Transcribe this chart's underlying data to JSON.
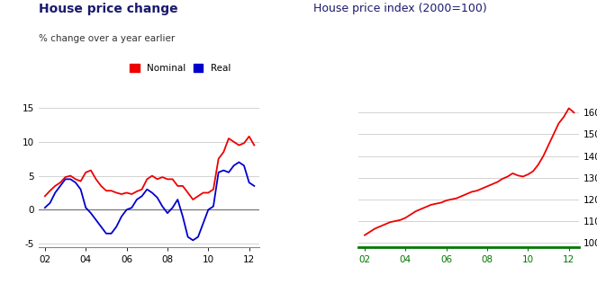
{
  "title1": "House price change",
  "subtitle1": "% change over a year earlier",
  "title2": "House price index (2000=100)",
  "title1_color": "#1a1a6e",
  "title2_color": "#1a1a6e",
  "subtitle1_color": "#333333",
  "nominal_color": "#ee0000",
  "real_color": "#0000cc",
  "background_color": "#ffffff",
  "grid_color": "#cccccc",
  "zero_line_color": "#777777",
  "green_color": "#007700",
  "left_ylim": [
    -5.5,
    17.5
  ],
  "left_yticks": [
    -5,
    0,
    5,
    10,
    15
  ],
  "left_xticks": [
    2002,
    2004,
    2006,
    2008,
    2010,
    2012
  ],
  "left_xticklabels": [
    "02",
    "04",
    "06",
    "08",
    "10",
    "12"
  ],
  "right_ylim": [
    98,
    170
  ],
  "right_yticks": [
    100,
    110,
    120,
    130,
    140,
    150,
    160
  ],
  "right_xticks": [
    2002,
    2004,
    2006,
    2008,
    2010,
    2012
  ],
  "right_xticklabels": [
    "02",
    "04",
    "06",
    "08",
    "10",
    "12"
  ],
  "nominal_x": [
    2002.0,
    2002.25,
    2002.5,
    2002.75,
    2003.0,
    2003.25,
    2003.5,
    2003.75,
    2004.0,
    2004.25,
    2004.5,
    2004.75,
    2005.0,
    2005.25,
    2005.5,
    2005.75,
    2006.0,
    2006.25,
    2006.5,
    2006.75,
    2007.0,
    2007.25,
    2007.5,
    2007.75,
    2008.0,
    2008.25,
    2008.5,
    2008.75,
    2009.0,
    2009.25,
    2009.5,
    2009.75,
    2010.0,
    2010.25,
    2010.5,
    2010.75,
    2011.0,
    2011.25,
    2011.5,
    2011.75,
    2012.0,
    2012.25
  ],
  "nominal_y": [
    2.0,
    2.8,
    3.5,
    4.0,
    4.8,
    5.0,
    4.5,
    4.2,
    5.5,
    5.8,
    4.5,
    3.5,
    2.8,
    2.8,
    2.5,
    2.3,
    2.5,
    2.3,
    2.7,
    3.0,
    4.5,
    5.0,
    4.5,
    4.8,
    4.5,
    4.5,
    3.5,
    3.5,
    2.5,
    1.5,
    2.0,
    2.5,
    2.5,
    3.0,
    7.5,
    8.5,
    10.5,
    10.0,
    9.5,
    9.8,
    10.8,
    9.5
  ],
  "real_x": [
    2002.0,
    2002.25,
    2002.5,
    2002.75,
    2003.0,
    2003.25,
    2003.5,
    2003.75,
    2004.0,
    2004.25,
    2004.5,
    2004.75,
    2005.0,
    2005.25,
    2005.5,
    2005.75,
    2006.0,
    2006.25,
    2006.5,
    2006.75,
    2007.0,
    2007.25,
    2007.5,
    2007.75,
    2008.0,
    2008.25,
    2008.5,
    2008.75,
    2009.0,
    2009.25,
    2009.5,
    2009.75,
    2010.0,
    2010.25,
    2010.5,
    2010.75,
    2011.0,
    2011.25,
    2011.5,
    2011.75,
    2012.0,
    2012.25
  ],
  "real_y": [
    0.3,
    1.0,
    2.5,
    3.5,
    4.5,
    4.5,
    4.0,
    3.0,
    0.3,
    -0.5,
    -1.5,
    -2.5,
    -3.5,
    -3.5,
    -2.5,
    -1.0,
    0.0,
    0.3,
    1.5,
    2.0,
    3.0,
    2.5,
    1.8,
    0.5,
    -0.5,
    0.3,
    1.5,
    -1.0,
    -4.0,
    -4.5,
    -4.0,
    -2.0,
    0.0,
    0.5,
    5.5,
    5.8,
    5.5,
    6.5,
    7.0,
    6.5,
    4.0,
    3.5
  ],
  "index_x": [
    2002.0,
    2002.25,
    2002.5,
    2002.75,
    2003.0,
    2003.25,
    2003.5,
    2003.75,
    2004.0,
    2004.25,
    2004.5,
    2004.75,
    2005.0,
    2005.25,
    2005.5,
    2005.75,
    2006.0,
    2006.25,
    2006.5,
    2006.75,
    2007.0,
    2007.25,
    2007.5,
    2007.75,
    2008.0,
    2008.25,
    2008.5,
    2008.75,
    2009.0,
    2009.25,
    2009.5,
    2009.75,
    2010.0,
    2010.25,
    2010.5,
    2010.75,
    2011.0,
    2011.25,
    2011.5,
    2011.75,
    2012.0,
    2012.25
  ],
  "index_y": [
    103.5,
    105.0,
    106.5,
    107.5,
    108.5,
    109.5,
    110.0,
    110.5,
    111.5,
    113.0,
    114.5,
    115.5,
    116.5,
    117.5,
    118.0,
    118.5,
    119.5,
    120.0,
    120.5,
    121.5,
    122.5,
    123.5,
    124.0,
    125.0,
    126.0,
    127.0,
    128.0,
    129.5,
    130.5,
    132.0,
    131.0,
    130.5,
    131.5,
    133.0,
    136.0,
    140.0,
    145.0,
    150.0,
    155.0,
    158.0,
    162.0,
    160.0
  ]
}
